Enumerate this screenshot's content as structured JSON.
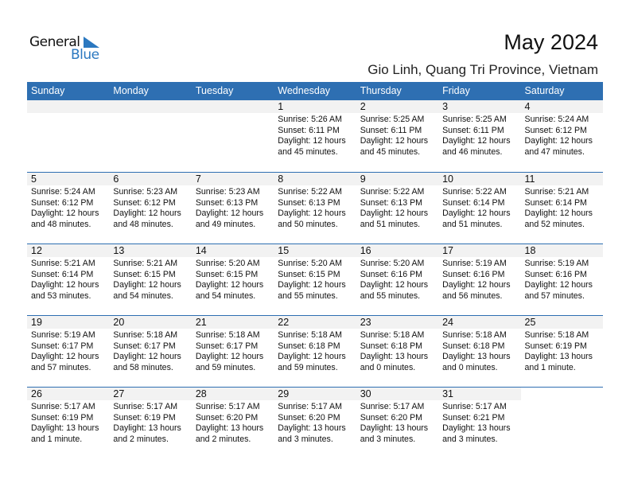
{
  "logo": {
    "text_general": "General",
    "text_blue": "Blue"
  },
  "header": {
    "title": "May 2024",
    "location": "Gio Linh, Quang Tri Province, Vietnam"
  },
  "colors": {
    "accent": "#2e6fb2",
    "day_band": "#f2f2f2"
  },
  "weekdays": [
    "Sunday",
    "Monday",
    "Tuesday",
    "Wednesday",
    "Thursday",
    "Friday",
    "Saturday"
  ],
  "weeks": [
    [
      null,
      null,
      null,
      {
        "day": "1",
        "sunrise": "Sunrise: 5:26 AM",
        "sunset": "Sunset: 6:11 PM",
        "daylight1": "Daylight: 12 hours",
        "daylight2": "and 45 minutes."
      },
      {
        "day": "2",
        "sunrise": "Sunrise: 5:25 AM",
        "sunset": "Sunset: 6:11 PM",
        "daylight1": "Daylight: 12 hours",
        "daylight2": "and 45 minutes."
      },
      {
        "day": "3",
        "sunrise": "Sunrise: 5:25 AM",
        "sunset": "Sunset: 6:11 PM",
        "daylight1": "Daylight: 12 hours",
        "daylight2": "and 46 minutes."
      },
      {
        "day": "4",
        "sunrise": "Sunrise: 5:24 AM",
        "sunset": "Sunset: 6:12 PM",
        "daylight1": "Daylight: 12 hours",
        "daylight2": "and 47 minutes."
      }
    ],
    [
      {
        "day": "5",
        "sunrise": "Sunrise: 5:24 AM",
        "sunset": "Sunset: 6:12 PM",
        "daylight1": "Daylight: 12 hours",
        "daylight2": "and 48 minutes."
      },
      {
        "day": "6",
        "sunrise": "Sunrise: 5:23 AM",
        "sunset": "Sunset: 6:12 PM",
        "daylight1": "Daylight: 12 hours",
        "daylight2": "and 48 minutes."
      },
      {
        "day": "7",
        "sunrise": "Sunrise: 5:23 AM",
        "sunset": "Sunset: 6:13 PM",
        "daylight1": "Daylight: 12 hours",
        "daylight2": "and 49 minutes."
      },
      {
        "day": "8",
        "sunrise": "Sunrise: 5:22 AM",
        "sunset": "Sunset: 6:13 PM",
        "daylight1": "Daylight: 12 hours",
        "daylight2": "and 50 minutes."
      },
      {
        "day": "9",
        "sunrise": "Sunrise: 5:22 AM",
        "sunset": "Sunset: 6:13 PM",
        "daylight1": "Daylight: 12 hours",
        "daylight2": "and 51 minutes."
      },
      {
        "day": "10",
        "sunrise": "Sunrise: 5:22 AM",
        "sunset": "Sunset: 6:14 PM",
        "daylight1": "Daylight: 12 hours",
        "daylight2": "and 51 minutes."
      },
      {
        "day": "11",
        "sunrise": "Sunrise: 5:21 AM",
        "sunset": "Sunset: 6:14 PM",
        "daylight1": "Daylight: 12 hours",
        "daylight2": "and 52 minutes."
      }
    ],
    [
      {
        "day": "12",
        "sunrise": "Sunrise: 5:21 AM",
        "sunset": "Sunset: 6:14 PM",
        "daylight1": "Daylight: 12 hours",
        "daylight2": "and 53 minutes."
      },
      {
        "day": "13",
        "sunrise": "Sunrise: 5:21 AM",
        "sunset": "Sunset: 6:15 PM",
        "daylight1": "Daylight: 12 hours",
        "daylight2": "and 54 minutes."
      },
      {
        "day": "14",
        "sunrise": "Sunrise: 5:20 AM",
        "sunset": "Sunset: 6:15 PM",
        "daylight1": "Daylight: 12 hours",
        "daylight2": "and 54 minutes."
      },
      {
        "day": "15",
        "sunrise": "Sunrise: 5:20 AM",
        "sunset": "Sunset: 6:15 PM",
        "daylight1": "Daylight: 12 hours",
        "daylight2": "and 55 minutes."
      },
      {
        "day": "16",
        "sunrise": "Sunrise: 5:20 AM",
        "sunset": "Sunset: 6:16 PM",
        "daylight1": "Daylight: 12 hours",
        "daylight2": "and 55 minutes."
      },
      {
        "day": "17",
        "sunrise": "Sunrise: 5:19 AM",
        "sunset": "Sunset: 6:16 PM",
        "daylight1": "Daylight: 12 hours",
        "daylight2": "and 56 minutes."
      },
      {
        "day": "18",
        "sunrise": "Sunrise: 5:19 AM",
        "sunset": "Sunset: 6:16 PM",
        "daylight1": "Daylight: 12 hours",
        "daylight2": "and 57 minutes."
      }
    ],
    [
      {
        "day": "19",
        "sunrise": "Sunrise: 5:19 AM",
        "sunset": "Sunset: 6:17 PM",
        "daylight1": "Daylight: 12 hours",
        "daylight2": "and 57 minutes."
      },
      {
        "day": "20",
        "sunrise": "Sunrise: 5:18 AM",
        "sunset": "Sunset: 6:17 PM",
        "daylight1": "Daylight: 12 hours",
        "daylight2": "and 58 minutes."
      },
      {
        "day": "21",
        "sunrise": "Sunrise: 5:18 AM",
        "sunset": "Sunset: 6:17 PM",
        "daylight1": "Daylight: 12 hours",
        "daylight2": "and 59 minutes."
      },
      {
        "day": "22",
        "sunrise": "Sunrise: 5:18 AM",
        "sunset": "Sunset: 6:18 PM",
        "daylight1": "Daylight: 12 hours",
        "daylight2": "and 59 minutes."
      },
      {
        "day": "23",
        "sunrise": "Sunrise: 5:18 AM",
        "sunset": "Sunset: 6:18 PM",
        "daylight1": "Daylight: 13 hours",
        "daylight2": "and 0 minutes."
      },
      {
        "day": "24",
        "sunrise": "Sunrise: 5:18 AM",
        "sunset": "Sunset: 6:18 PM",
        "daylight1": "Daylight: 13 hours",
        "daylight2": "and 0 minutes."
      },
      {
        "day": "25",
        "sunrise": "Sunrise: 5:18 AM",
        "sunset": "Sunset: 6:19 PM",
        "daylight1": "Daylight: 13 hours",
        "daylight2": "and 1 minute."
      }
    ],
    [
      {
        "day": "26",
        "sunrise": "Sunrise: 5:17 AM",
        "sunset": "Sunset: 6:19 PM",
        "daylight1": "Daylight: 13 hours",
        "daylight2": "and 1 minute."
      },
      {
        "day": "27",
        "sunrise": "Sunrise: 5:17 AM",
        "sunset": "Sunset: 6:19 PM",
        "daylight1": "Daylight: 13 hours",
        "daylight2": "and 2 minutes."
      },
      {
        "day": "28",
        "sunrise": "Sunrise: 5:17 AM",
        "sunset": "Sunset: 6:20 PM",
        "daylight1": "Daylight: 13 hours",
        "daylight2": "and 2 minutes."
      },
      {
        "day": "29",
        "sunrise": "Sunrise: 5:17 AM",
        "sunset": "Sunset: 6:20 PM",
        "daylight1": "Daylight: 13 hours",
        "daylight2": "and 3 minutes."
      },
      {
        "day": "30",
        "sunrise": "Sunrise: 5:17 AM",
        "sunset": "Sunset: 6:20 PM",
        "daylight1": "Daylight: 13 hours",
        "daylight2": "and 3 minutes."
      },
      {
        "day": "31",
        "sunrise": "Sunrise: 5:17 AM",
        "sunset": "Sunset: 6:21 PM",
        "daylight1": "Daylight: 13 hours",
        "daylight2": "and 3 minutes."
      },
      null
    ]
  ]
}
